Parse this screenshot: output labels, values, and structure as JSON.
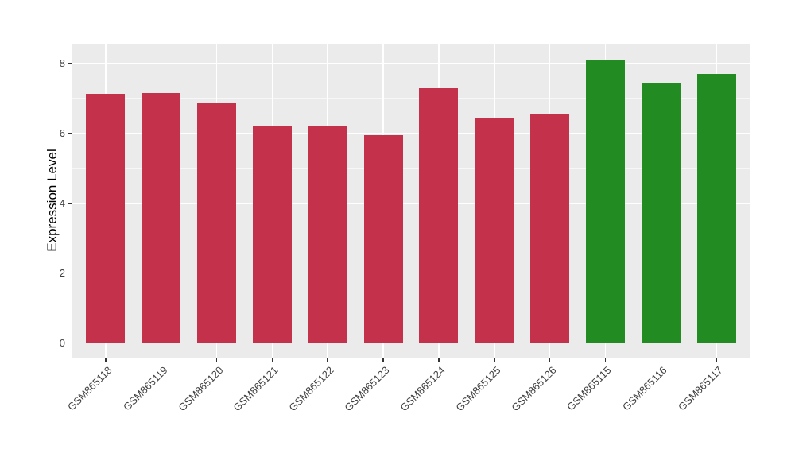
{
  "chart_data": {
    "type": "bar",
    "title": "",
    "xlabel": "",
    "ylabel": "Expression Level",
    "categories": [
      "GSM865118",
      "GSM865119",
      "GSM865120",
      "GSM865121",
      "GSM865122",
      "GSM865123",
      "GSM865124",
      "GSM865125",
      "GSM865126",
      "GSM865115",
      "GSM865116",
      "GSM865117"
    ],
    "values": [
      7.13,
      7.16,
      6.86,
      6.2,
      6.2,
      5.96,
      7.3,
      6.46,
      6.55,
      8.12,
      7.45,
      7.7
    ],
    "color_groups": [
      {
        "name": "samples-red",
        "color": "#c3324a",
        "categories": [
          "GSM865118",
          "GSM865119",
          "GSM865120",
          "GSM865121",
          "GSM865122",
          "GSM865123",
          "GSM865124",
          "GSM865125",
          "GSM865126"
        ]
      },
      {
        "name": "samples-green",
        "color": "#228b22",
        "categories": [
          "GSM865115",
          "GSM865116",
          "GSM865117"
        ]
      }
    ],
    "yticks": [
      0,
      2,
      4,
      6,
      8
    ],
    "yticks_minor": [
      1,
      3,
      5,
      7
    ],
    "ylim": [
      -0.42,
      8.57
    ],
    "grid": true,
    "legend": false,
    "panel_background": "#ebebeb",
    "gridline_color": "#ffffff",
    "tick_label_color": "#404040",
    "axis_title_color": "#000000"
  }
}
